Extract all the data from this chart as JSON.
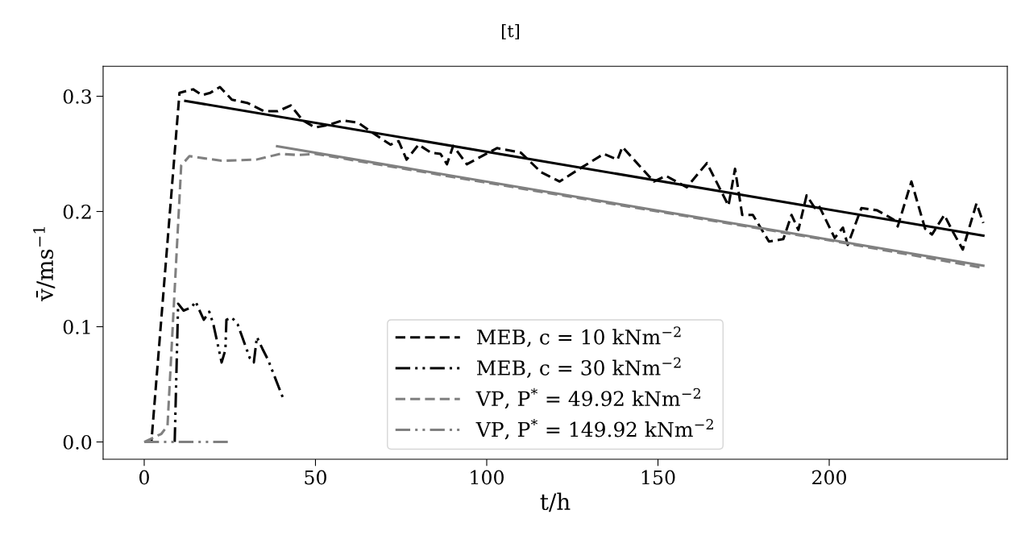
{
  "chart_data": {
    "type": "line",
    "annotations": [
      "[t]"
    ],
    "xlabel": "t/h",
    "ylabel": "v̄/ms$^{−1}$",
    "xlim": [
      -12,
      252
    ],
    "ylim": [
      -0.015,
      0.326
    ],
    "xticks": [
      0,
      50,
      100,
      150,
      200
    ],
    "yticks": [
      {
        "value": 0,
        "label": "0.0"
      },
      {
        "value": 0.1,
        "label": "0.1"
      },
      {
        "value": 0.2,
        "label": "0.2"
      },
      {
        "value": 0.3,
        "label": "0.3"
      }
    ],
    "grid": false,
    "legend": "bottom",
    "marker": "none",
    "series": [
      {
        "name": "MEB, c = 10 kNm$^{−2}$",
        "color": "#000000",
        "line_style": "dashed",
        "x": [
          0,
          2.1,
          10.3,
          14.3,
          16.9,
          19.3,
          22.1,
          25.6,
          30.3,
          35,
          39,
          42.8,
          46.3,
          49.8,
          53.8,
          57.8,
          62.5,
          66.3,
          71.9,
          74.3,
          76.6,
          80.1,
          83.7,
          86.5,
          88.4,
          90.2,
          94.2,
          103,
          110,
          115.9,
          121.3,
          127.6,
          134.2,
          138.2,
          139.6,
          148.8,
          152.3,
          158.4,
          164.3,
          170.6,
          172.5,
          174.6,
          177.7,
          182.4,
          186.6,
          189,
          191,
          193.4,
          195.8,
          197,
          201.6,
          204,
          205.4,
          209.4,
          214,
          218.8,
          220,
          224,
          228,
          230,
          233.6,
          236,
          239,
          243,
          245
        ],
        "values": [
          0,
          0,
          0.303,
          0.306,
          0.301,
          0.303,
          0.308,
          0.297,
          0.294,
          0.287,
          0.287,
          0.292,
          0.279,
          0.273,
          0.275,
          0.279,
          0.277,
          0.269,
          0.258,
          0.261,
          0.245,
          0.258,
          0.251,
          0.25,
          0.241,
          0.257,
          0.241,
          0.255,
          0.251,
          0.234,
          0.226,
          0.238,
          0.25,
          0.245,
          0.256,
          0.226,
          0.231,
          0.221,
          0.242,
          0.205,
          0.237,
          0.197,
          0.197,
          0.174,
          0.176,
          0.197,
          0.184,
          0.214,
          0.203,
          0.205,
          0.177,
          0.186,
          0.171,
          0.203,
          0.201,
          0.193,
          0.187,
          0.226,
          0.185,
          0.18,
          0.197,
          0.183,
          0.167,
          0.207,
          0.19
        ]
      },
      {
        "name": "MEB, c = 30 kNm$^{−2}$",
        "color": "#000000",
        "line_style": "dashdot",
        "x": [
          8.9,
          9.9,
          11.5,
          13.9,
          15,
          15.7,
          17.4,
          19,
          20.2,
          22.6,
          23.7,
          24,
          25.6,
          27.3,
          30.8,
          32,
          32.9,
          34.5,
          36.2,
          40.4
        ],
        "values": [
          0,
          0.12,
          0.114,
          0.117,
          0.122,
          0.117,
          0.106,
          0.113,
          0.102,
          0.069,
          0.08,
          0.106,
          0.108,
          0.102,
          0.073,
          0.069,
          0.091,
          0.081,
          0.071,
          0.039
        ]
      },
      {
        "name": "VP, P$^{*}$ = 49.92 kNm$^{−2}$",
        "color": "#808080",
        "line_style": "dashed",
        "x": [
          0,
          5,
          6.8,
          10.8,
          13.2,
          22.6,
          32.7,
          39.7,
          45.1,
          50,
          100,
          150,
          200,
          245
        ],
        "values": [
          0,
          0.007,
          0.014,
          0.24,
          0.248,
          0.244,
          0.245,
          0.25,
          0.249,
          0.25,
          0.225,
          0.2,
          0.175,
          0.151
        ]
      },
      {
        "name": "VP, P$^{*}$ = 149.92 kNm$^{−2}$",
        "color": "#808080",
        "line_style": "dashdot",
        "x": [
          0,
          24.4
        ],
        "values": [
          0,
          0
        ]
      },
      {
        "color": "#000000",
        "line_style": "solid",
        "x": [
          12,
          245
        ],
        "values": [
          0.296,
          0.179
        ]
      },
      {
        "color": "#808080",
        "line_style": "solid",
        "x": [
          38.8,
          245
        ],
        "values": [
          0.2566,
          0.153
        ]
      }
    ]
  }
}
